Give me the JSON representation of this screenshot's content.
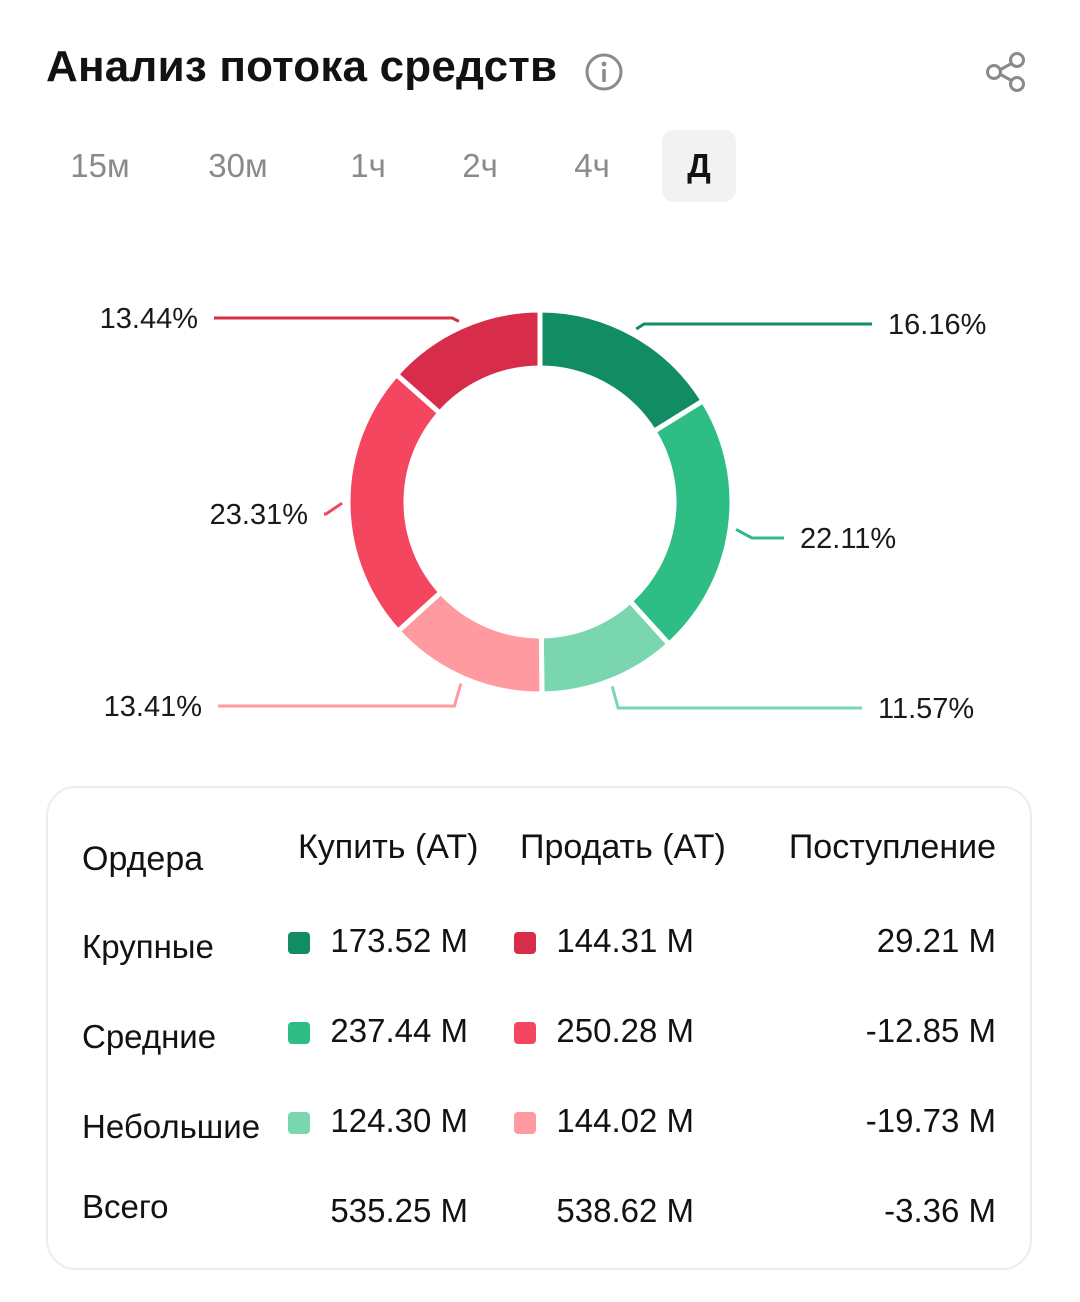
{
  "header": {
    "title": "Анализ потока средств",
    "info_icon": "info-icon",
    "share_icon": "share-icon"
  },
  "tabs": [
    {
      "label": "15м",
      "active": false
    },
    {
      "label": "30м",
      "active": false
    },
    {
      "label": "1ч",
      "active": false
    },
    {
      "label": "2ч",
      "active": false
    },
    {
      "label": "4ч",
      "active": false
    },
    {
      "label": "Д",
      "active": true
    }
  ],
  "colors": {
    "large_buy": "#128c62",
    "medium_buy": "#2fbd86",
    "small_buy": "#7ad6ae",
    "large_sell": "#d72d4b",
    "medium_sell": "#f4475f",
    "small_sell": "#ff9aa0"
  },
  "chart_data": {
    "type": "pie",
    "labels": [
      "16.16%",
      "22.11%",
      "11.57%",
      "13.41%",
      "23.31%",
      "13.44%"
    ],
    "values": [
      16.16,
      22.11,
      11.57,
      13.41,
      23.31,
      13.44
    ],
    "slice_colors": [
      "#128c62",
      "#2fbd86",
      "#7ad6ae",
      "#ff9aa0",
      "#f4475f",
      "#d72d4b"
    ],
    "legend": "none"
  },
  "table": {
    "headers": [
      "Ордера",
      "Купить (AT)",
      "Продать (AT)",
      "Поступление"
    ],
    "rows": [
      {
        "label": "Крупные",
        "buy": "173.52 M",
        "sell": "144.31 M",
        "inflow": "29.21 M",
        "buy_color": "#128c62",
        "sell_color": "#d72d4b"
      },
      {
        "label": "Средние",
        "buy": "237.44 M",
        "sell": "250.28 M",
        "inflow": "-12.85 M",
        "buy_color": "#2fbd86",
        "sell_color": "#f4475f"
      },
      {
        "label": "Небольшие",
        "buy": "124.30 M",
        "sell": "144.02 M",
        "inflow": "-19.73 M",
        "buy_color": "#7ad6ae",
        "sell_color": "#ff9aa0"
      },
      {
        "label": "Всего",
        "buy": "535.25 M",
        "sell": "538.62 M",
        "inflow": "-3.36 M",
        "buy_color": "",
        "sell_color": ""
      }
    ]
  }
}
